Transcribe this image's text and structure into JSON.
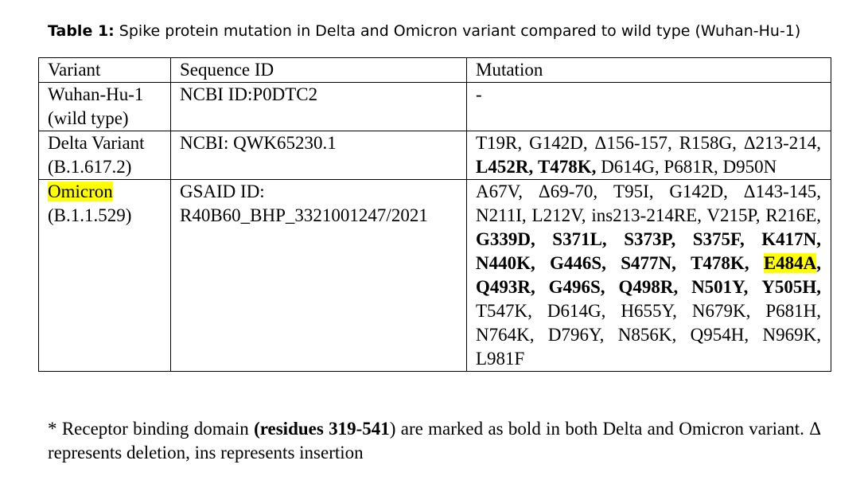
{
  "caption": {
    "label": "Table 1:",
    "text": " Spike protein mutation in Delta and Omicron variant compared to wild type (Wuhan-Hu-1)"
  },
  "table": {
    "headers": [
      "Variant",
      "Sequence ID",
      "Mutation"
    ],
    "rows": [
      {
        "variant": "Wuhan-Hu-1",
        "variant_sub": "(wild type)",
        "sequence_id": "NCBI ID:P0DTC2",
        "mutation": "-"
      },
      {
        "variant": "Delta Variant",
        "variant_sub": "(B.1.617.2)",
        "sequence_id": "NCBI: QWK65230.1",
        "mutations": [
          {
            "t": "T19R,",
            "b": false
          },
          {
            "t": "G142D,",
            "b": false
          },
          {
            "t": "Δ156-157,",
            "b": false
          },
          {
            "t": "R158G,",
            "b": false
          },
          {
            "t": "Δ213-214,",
            "b": false
          },
          {
            "t": "L452R,",
            "b": true
          },
          {
            "t": "T478K,",
            "b": true
          },
          {
            "t": "D614G,",
            "b": false
          },
          {
            "t": "P681R,",
            "b": false
          },
          {
            "t": "D950N",
            "b": false
          }
        ]
      },
      {
        "variant": "Omicron",
        "variant_sub": "(B.1.1.529)",
        "sequence_id_line1": "GSAID ID:",
        "sequence_id_line2": "R40B60_BHP_3321001247/2021",
        "mutations": [
          {
            "t": "A67V,",
            "b": false
          },
          {
            "t": "Δ69-70,",
            "b": false
          },
          {
            "t": "T95I,",
            "b": false
          },
          {
            "t": "G142D,",
            "b": false
          },
          {
            "t": "Δ143-145,",
            "b": false
          },
          {
            "t": "N211I,",
            "b": false
          },
          {
            "t": "L212V,",
            "b": false
          },
          {
            "t": "ins213-214RE,",
            "b": false
          },
          {
            "t": "V215P,",
            "b": false
          },
          {
            "t": "R216E,",
            "b": false
          },
          {
            "t": "G339D,",
            "b": true
          },
          {
            "t": "S371L,",
            "b": true
          },
          {
            "t": "S373P,",
            "b": true
          },
          {
            "t": "S375F,",
            "b": true
          },
          {
            "t": "K417N,",
            "b": true
          },
          {
            "t": "N440K,",
            "b": true
          },
          {
            "t": "G446S,",
            "b": true
          },
          {
            "t": "S477N,",
            "b": true
          },
          {
            "t": "T478K,",
            "b": true
          },
          {
            "t": "E484A",
            "b": true,
            "hl": true,
            "suffix": ","
          },
          {
            "t": "Q493R,",
            "b": true
          },
          {
            "t": "G496S,",
            "b": true
          },
          {
            "t": "Q498R,",
            "b": true
          },
          {
            "t": "N501Y,",
            "b": true
          },
          {
            "t": "Y505H,",
            "b": true
          },
          {
            "t": "T547K,",
            "b": false
          },
          {
            "t": "D614G,",
            "b": false
          },
          {
            "t": "H655Y,",
            "b": false
          },
          {
            "t": "N679K,",
            "b": false
          },
          {
            "t": "P681H,",
            "b": false
          },
          {
            "t": "N764K,",
            "b": false
          },
          {
            "t": "D796Y,",
            "b": false
          },
          {
            "t": "N856K,",
            "b": false
          },
          {
            "t": "Q954H,",
            "b": false
          },
          {
            "t": "N969K,",
            "b": false
          },
          {
            "t": "L981F",
            "b": false
          }
        ]
      }
    ]
  },
  "footnote": {
    "part1": "* Receptor binding domain ",
    "bold": "(residues 319-541",
    "part2": ") are marked as bold in both Delta and Omicron variant. Δ represents deletion, ins represents insertion"
  },
  "colors": {
    "highlight": "#ffff00",
    "text": "#000000"
  }
}
